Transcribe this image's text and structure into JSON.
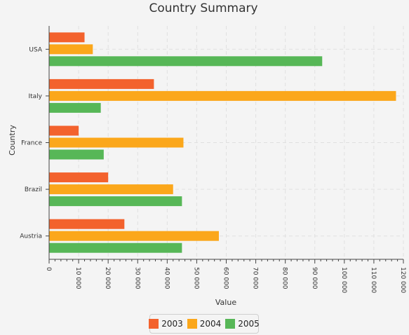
{
  "chart_data": {
    "type": "bar",
    "orientation": "horizontal",
    "title": "Country Summary",
    "xlabel": "Value",
    "ylabel": "Country",
    "categories": [
      "USA",
      "Italy",
      "France",
      "Brazil",
      "Austria"
    ],
    "series": [
      {
        "name": "2003",
        "color": "#f3622d",
        "values": [
          12000,
          35500,
          10000,
          20000,
          25500
        ]
      },
      {
        "name": "2004",
        "color": "#fba71b",
        "values": [
          14800,
          117500,
          45500,
          42000,
          57500
        ]
      },
      {
        "name": "2005",
        "color": "#57b757",
        "values": [
          92500,
          17500,
          18500,
          45000,
          45000
        ]
      }
    ],
    "xlim": [
      0,
      120000
    ],
    "x_ticks": [
      "0",
      "10 000",
      "20 000",
      "30 000",
      "40 000",
      "50 000",
      "60 000",
      "70 000",
      "80 000",
      "90 000",
      "100 000",
      "110 000",
      "120 000"
    ],
    "grid": true,
    "legend_position": "bottom"
  }
}
